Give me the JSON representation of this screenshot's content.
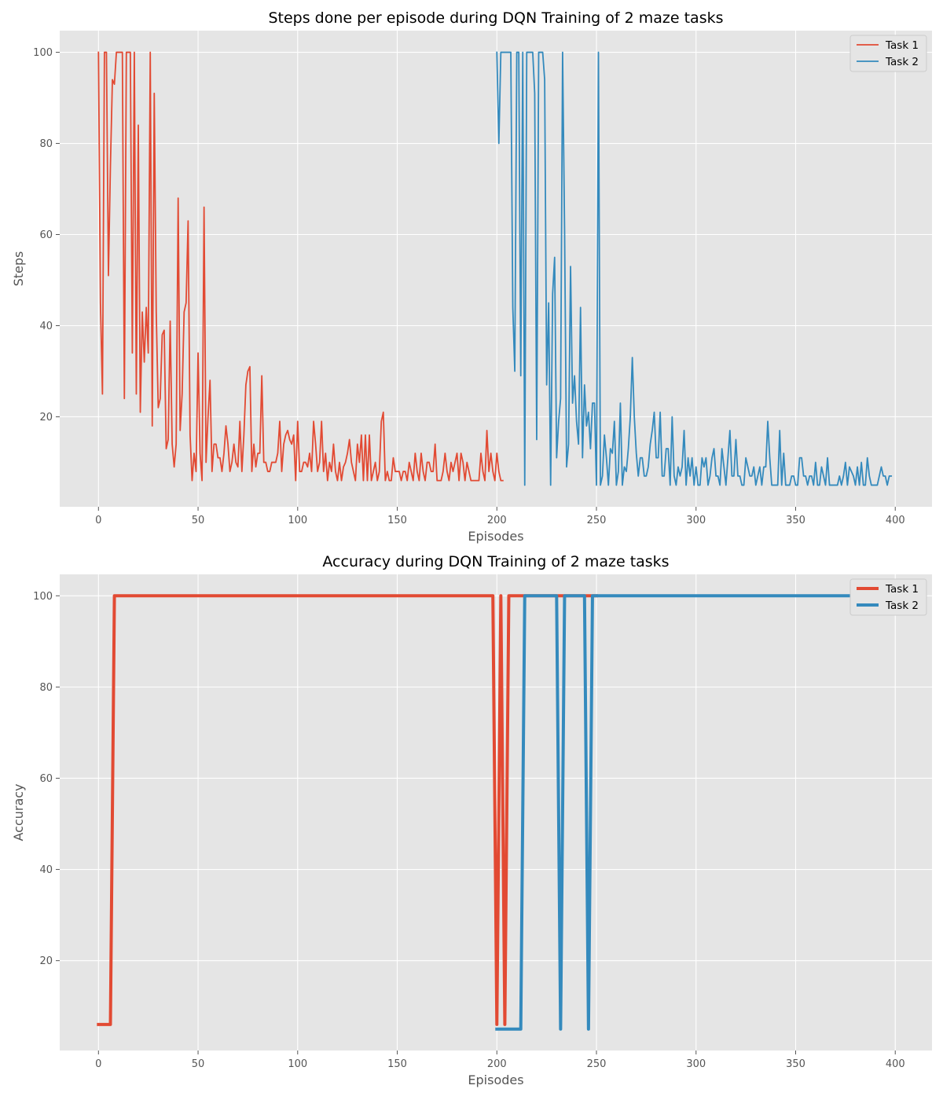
{
  "colors": {
    "task1": "#E24A33",
    "task2": "#348ABD",
    "panel": "#E5E5E5",
    "grid": "#FFFFFF",
    "tick": "#555555"
  },
  "chart_data": [
    {
      "type": "line",
      "title": "Steps done per episode during DQN Training of 2 maze tasks",
      "xlabel": "Episodes",
      "ylabel": "Steps",
      "xlim": [
        -19.45,
        418.45
      ],
      "ylim": [
        0.25,
        104.75
      ],
      "xticks": [
        0,
        50,
        100,
        150,
        200,
        250,
        300,
        350,
        400
      ],
      "yticks": [
        20,
        40,
        60,
        80,
        100
      ],
      "grid": true,
      "legend": "top-right",
      "line_style": "thin",
      "series": [
        {
          "name": "Task 1",
          "x_start": 0,
          "values": [
            100,
            45,
            25,
            100,
            100,
            51,
            75,
            94,
            93,
            100,
            100,
            100,
            100,
            24,
            100,
            100,
            100,
            34,
            100,
            25,
            84,
            21,
            43,
            32,
            44,
            34,
            100,
            18,
            91,
            43,
            22,
            24,
            38,
            39,
            13,
            15,
            41,
            14,
            9,
            14,
            68,
            17,
            25,
            43,
            45,
            63,
            16,
            6,
            12,
            8,
            34,
            12,
            6,
            66,
            10,
            20,
            28,
            8,
            14,
            14,
            11,
            11,
            8,
            12,
            18,
            14,
            8,
            10,
            14,
            10,
            9,
            19,
            8,
            16,
            27,
            30,
            31,
            8,
            14,
            9,
            12,
            12,
            29,
            10,
            10,
            8,
            8,
            10,
            10,
            10,
            12,
            19,
            8,
            14,
            16,
            17,
            15,
            14,
            16,
            6,
            19,
            8,
            8,
            10,
            10,
            9,
            12,
            8,
            19,
            14,
            8,
            10,
            19,
            8,
            12,
            6,
            10,
            8,
            14,
            8,
            6,
            10,
            6,
            9,
            10,
            12,
            15,
            10,
            8,
            6,
            14,
            10,
            16,
            6,
            16,
            6,
            16,
            6,
            8,
            10,
            6,
            8,
            19,
            21,
            6,
            8,
            6,
            6,
            11,
            8,
            8,
            8,
            6,
            8,
            8,
            6,
            10,
            8,
            6,
            12,
            8,
            6,
            12,
            8,
            6,
            10,
            10,
            8,
            8,
            14,
            6,
            6,
            6,
            8,
            12,
            8,
            6,
            10,
            8,
            10,
            12,
            6,
            12,
            10,
            6,
            10,
            8,
            6,
            6,
            6,
            6,
            6,
            12,
            8,
            6,
            17,
            8,
            12,
            8,
            6,
            12,
            8,
            6,
            6
          ]
        },
        {
          "name": "Task 2",
          "x_start": 200,
          "values": [
            100,
            80,
            100,
            100,
            100,
            100,
            100,
            100,
            44,
            30,
            100,
            100,
            29,
            100,
            5,
            100,
            100,
            100,
            100,
            91,
            15,
            100,
            100,
            100,
            94,
            27,
            45,
            5,
            47,
            55,
            11,
            19,
            24,
            100,
            61,
            9,
            14,
            53,
            23,
            29,
            19,
            14,
            44,
            11,
            27,
            18,
            21,
            13,
            23,
            23,
            5,
            100,
            5,
            7,
            16,
            11,
            5,
            13,
            12,
            19,
            5,
            8,
            23,
            5,
            9,
            8,
            13,
            20,
            33,
            20,
            12,
            7,
            11,
            11,
            7,
            7,
            9,
            14,
            17,
            21,
            11,
            11,
            21,
            7,
            7,
            13,
            13,
            5,
            20,
            7,
            5,
            9,
            7,
            9,
            17,
            5,
            11,
            7,
            11,
            5,
            9,
            5,
            5,
            11,
            9,
            11,
            5,
            7,
            11,
            13,
            7,
            7,
            5,
            13,
            9,
            5,
            11,
            17,
            7,
            7,
            15,
            7,
            7,
            5,
            5,
            11,
            9,
            7,
            7,
            9,
            5,
            7,
            9,
            5,
            9,
            9,
            19,
            11,
            5,
            5,
            5,
            5,
            17,
            5,
            12,
            5,
            5,
            5,
            7,
            7,
            5,
            5,
            11,
            11,
            7,
            7,
            5,
            7,
            7,
            5,
            10,
            5,
            5,
            9,
            7,
            5,
            11,
            5,
            5,
            5,
            5,
            5,
            7,
            5,
            7,
            10,
            5,
            9,
            8,
            7,
            5,
            9,
            5,
            10,
            5,
            5,
            11,
            7,
            5,
            5,
            5,
            5,
            7,
            9,
            7,
            7,
            5,
            7,
            7
          ]
        }
      ]
    },
    {
      "type": "line",
      "title": "Accuracy during DQN Training of 2 maze tasks",
      "xlabel": "Episodes",
      "ylabel": "Accuracy",
      "xlim": [
        -19.45,
        418.45
      ],
      "ylim": [
        0.3,
        104.7
      ],
      "xticks": [
        0,
        50,
        100,
        150,
        200,
        250,
        300,
        350,
        400
      ],
      "yticks": [
        20,
        40,
        60,
        80,
        100
      ],
      "grid": true,
      "legend": "top-right",
      "line_style": "thick",
      "series": [
        {
          "name": "Task 1",
          "points": [
            [
              0,
              6
            ],
            [
              6,
              6
            ],
            [
              8,
              100
            ],
            [
              198,
              100
            ],
            [
              200,
              6
            ],
            [
              202,
              100
            ],
            [
              204,
              6
            ],
            [
              206,
              100
            ],
            [
              250,
              100
            ]
          ]
        },
        {
          "name": "Task 2",
          "points": [
            [
              200,
              5
            ],
            [
              212,
              5
            ],
            [
              214,
              100
            ],
            [
              230,
              100
            ],
            [
              232,
              5
            ],
            [
              234,
              100
            ],
            [
              244,
              100
            ],
            [
              246,
              5
            ],
            [
              248,
              100
            ],
            [
              399,
              100
            ]
          ]
        }
      ]
    }
  ]
}
